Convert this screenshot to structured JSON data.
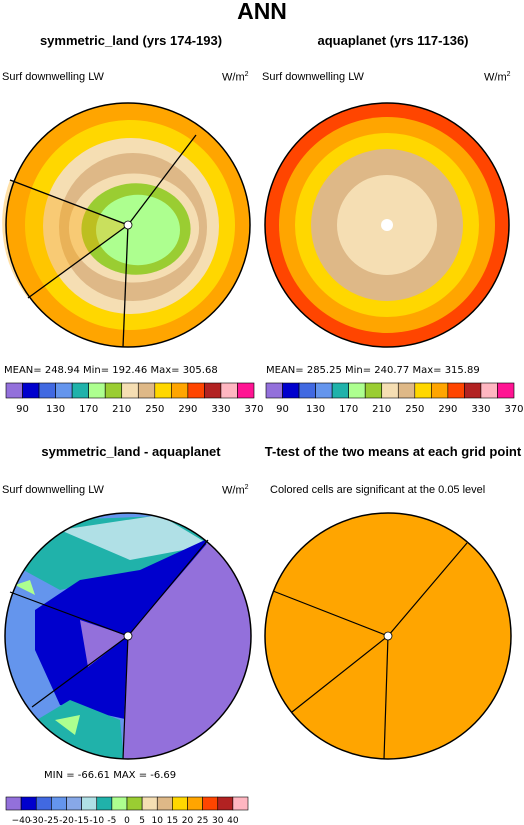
{
  "title": "ANN",
  "chart_data": [
    {
      "type": "heatmap",
      "title": "symmetric_land (yrs 174-193)",
      "variable": "Surf downwelling LW",
      "units_base": "W/m",
      "units_exp": "2",
      "stats": {
        "mean": 248.94,
        "min": 192.46,
        "max": 305.68
      },
      "stats_text": "MEAN= 248.94    Min= 192.46    Max= 305.68",
      "levels": [
        90,
        130,
        170,
        210,
        250,
        290,
        330,
        370
      ],
      "colors": [
        "#9370DB",
        "#0000CD",
        "#4169E1",
        "#6495ED",
        "#20B2AA",
        "#ADFF8F",
        "#9ACD32",
        "#F5DEB3",
        "#DEB887",
        "#FFD700",
        "#FFA500",
        "#FF4500",
        "#B22222",
        "#FFB6C1",
        "#FF1493"
      ],
      "projection": "polar",
      "bands_outer_to_inner": [
        "#FFA500",
        "#FFD700",
        "#F5DEB3",
        "#DEB887",
        "#F5DEB3",
        "#9ACD32",
        "#ADFF8F"
      ]
    },
    {
      "type": "heatmap",
      "title": "aquaplanet (yrs 117-136)",
      "variable": "Surf downwelling LW",
      "units_base": "W/m",
      "units_exp": "2",
      "stats": {
        "mean": 285.25,
        "min": 240.77,
        "max": 315.89
      },
      "stats_text": "MEAN= 285.25    Min= 240.77    Max= 315.89",
      "levels": [
        90,
        130,
        170,
        210,
        250,
        290,
        330,
        370
      ],
      "colors": [
        "#9370DB",
        "#0000CD",
        "#4169E1",
        "#6495ED",
        "#20B2AA",
        "#ADFF8F",
        "#9ACD32",
        "#F5DEB3",
        "#DEB887",
        "#FFD700",
        "#FFA500",
        "#FF4500",
        "#B22222",
        "#FFB6C1",
        "#FF1493"
      ],
      "projection": "polar",
      "bands_outer_to_inner": [
        "#FF4500",
        "#FFA500",
        "#FFD700",
        "#DEB887",
        "#F5DEB3"
      ]
    },
    {
      "type": "heatmap",
      "title": "symmetric_land - aquaplanet",
      "variable": "Surf downwelling LW",
      "units_base": "W/m",
      "units_exp": "2",
      "stats": {
        "min": -66.61,
        "max": -6.69
      },
      "stats_text": "MIN = -66.61  MAX =  -6.69",
      "levels": [
        "−40",
        "-30",
        "-25",
        "-20",
        "-15",
        "-10",
        "-5",
        "0",
        "5",
        "10",
        "15",
        "20",
        "25",
        "30",
        "40"
      ],
      "colors": [
        "#9370DB",
        "#0000CD",
        "#4169E1",
        "#6495ED",
        "#87A8E8",
        "#B0E0E6",
        "#20B2AA",
        "#ADFF8F",
        "#9ACD32",
        "#F5DEB3",
        "#DEB887",
        "#FFD700",
        "#FFA500",
        "#FF4500",
        "#B22222",
        "#FFB6C1",
        "#FF1493"
      ],
      "projection": "polar"
    },
    {
      "type": "heatmap",
      "title": "T-test of the two means at each grid point",
      "subtitle": "Colored cells are significant at the 0.05 level",
      "fill": "#FFA500",
      "projection": "polar"
    }
  ]
}
